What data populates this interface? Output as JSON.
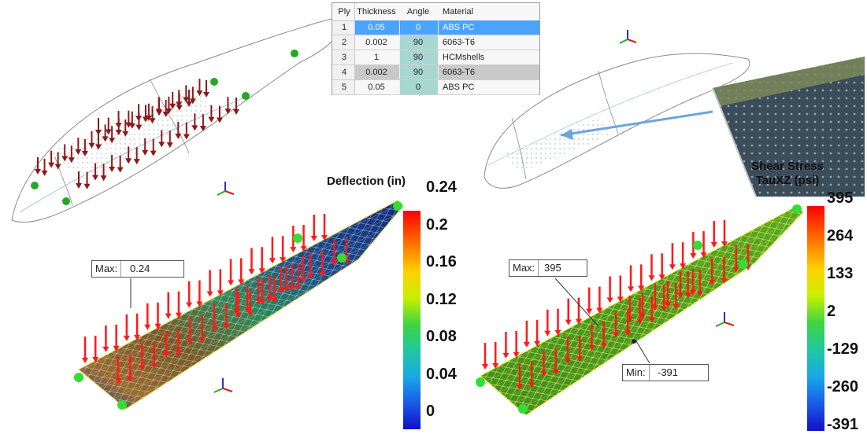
{
  "ply_table": {
    "headers": [
      "Ply",
      "Thickness",
      "Angle",
      "Material"
    ],
    "rows": [
      {
        "ply": "1",
        "thickness": "0.05",
        "angle": "0",
        "material": "ABS PC",
        "selected": true
      },
      {
        "ply": "2",
        "thickness": "0.002",
        "angle": "90",
        "material": "6063-T6",
        "selected": false
      },
      {
        "ply": "3",
        "thickness": "1",
        "angle": "90",
        "material": "HCMshells",
        "selected": false
      },
      {
        "ply": "4",
        "thickness": "0.002",
        "angle": "90",
        "material": "6063-T6",
        "selected": false
      },
      {
        "ply": "5",
        "thickness": "0.05",
        "angle": "0",
        "material": "ABS PC",
        "selected": false
      }
    ]
  },
  "deflection_legend": {
    "title": "Deflection (in)",
    "labels": [
      "0.24",
      "0.2",
      "0.16",
      "0.12",
      "0.08",
      "0.04",
      "0"
    ]
  },
  "shear_legend": {
    "title_line1": "Shear Stress",
    "title_line2": "TauXZ (psi)",
    "labels": [
      "395",
      "264",
      "133",
      "2",
      "-129",
      "-260",
      "-391"
    ]
  },
  "deflection_max": {
    "key": "Max:",
    "value": "0.24"
  },
  "shear_max": {
    "key": "Max:",
    "value": "395"
  },
  "shear_min": {
    "key": "Min:",
    "value": "-391"
  },
  "colors": {
    "load_dark": "#8b1a1a",
    "load_bright": "#ff1a1a",
    "constraint": "#22cc22",
    "selected_row": "#4aa3ff",
    "arrow_blue": "#6aa6dc"
  },
  "icons": [
    "axis-triad-icon",
    "constraint-icon",
    "load-arrow-icon"
  ]
}
